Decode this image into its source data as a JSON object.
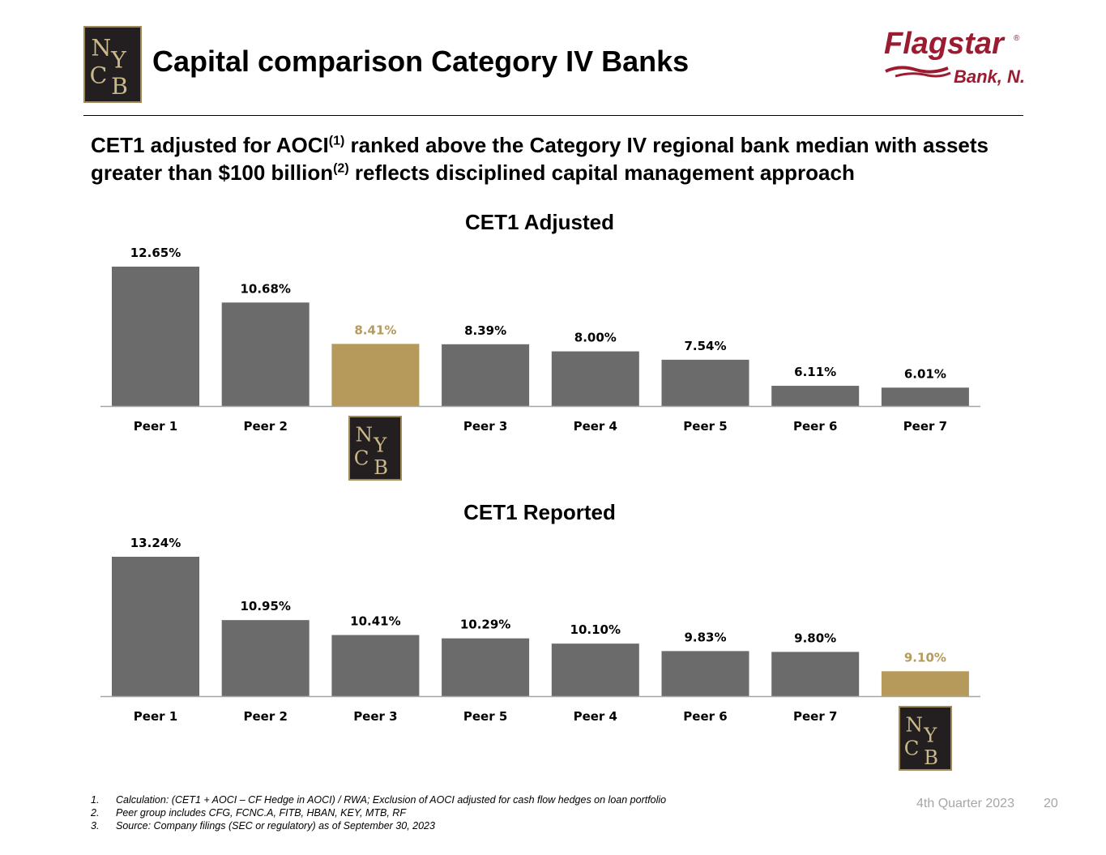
{
  "header": {
    "logo_text": "NYCB",
    "title": "Capital comparison Category IV Banks",
    "brand": {
      "name": "Flagstar",
      "registered": "®",
      "sub": "Bank, N.A."
    }
  },
  "subtitle": {
    "part1": "CET1 adjusted for AOCI",
    "sup1": "(1)",
    "part2": " ranked above the Category IV regional bank median with assets greater than $100 billion",
    "sup2": "(2)",
    "part3": " reflects disciplined capital management approach"
  },
  "colors": {
    "bar": "#6b6b6b",
    "highlight": "#b59a5b",
    "axis": "#a6a6a6",
    "footer": "#a6a6a6"
  },
  "chart_data": [
    {
      "type": "bar",
      "title": "CET1 Adjusted",
      "categories": [
        "Peer 1",
        "Peer 2",
        "NYCB",
        "Peer 3",
        "Peer 4",
        "Peer 5",
        "Peer 6",
        "Peer 7"
      ],
      "values": [
        12.65,
        10.68,
        8.41,
        8.39,
        8.0,
        7.54,
        6.11,
        6.01
      ],
      "labels": [
        "12.65%",
        "10.68%",
        "8.41%",
        "8.39%",
        "8.00%",
        "7.54%",
        "6.11%",
        "6.01%"
      ],
      "highlight_index": 2,
      "ylim": [
        5.0,
        12.65
      ],
      "grid": false
    },
    {
      "type": "bar",
      "title": "CET1 Reported",
      "categories": [
        "Peer 1",
        "Peer 2",
        "Peer 3",
        "Peer 5",
        "Peer 4",
        "Peer 6",
        "Peer 7",
        "NYCB"
      ],
      "values": [
        13.24,
        10.95,
        10.41,
        10.29,
        10.1,
        9.83,
        9.8,
        9.1
      ],
      "labels": [
        "13.24%",
        "10.95%",
        "10.41%",
        "10.29%",
        "10.10%",
        "9.83%",
        "9.80%",
        "9.10%"
      ],
      "highlight_index": 7,
      "ylim": [
        8.2,
        13.24
      ],
      "grid": false
    }
  ],
  "footnotes": [
    {
      "num": "1.",
      "text": "Calculation: (CET1 + AOCI – CF Hedge in AOCI) / RWA; Exclusion of AOCI adjusted for cash flow hedges on loan portfolio"
    },
    {
      "num": "2.",
      "text": "Peer group includes CFG, FCNC.A, FITB, HBAN, KEY, MTB, RF"
    },
    {
      "num": "3.",
      "text": "Source: Company filings (SEC or regulatory) as of September 30, 2023"
    }
  ],
  "footer": {
    "quarter": "4th Quarter 2023",
    "page": "20"
  }
}
